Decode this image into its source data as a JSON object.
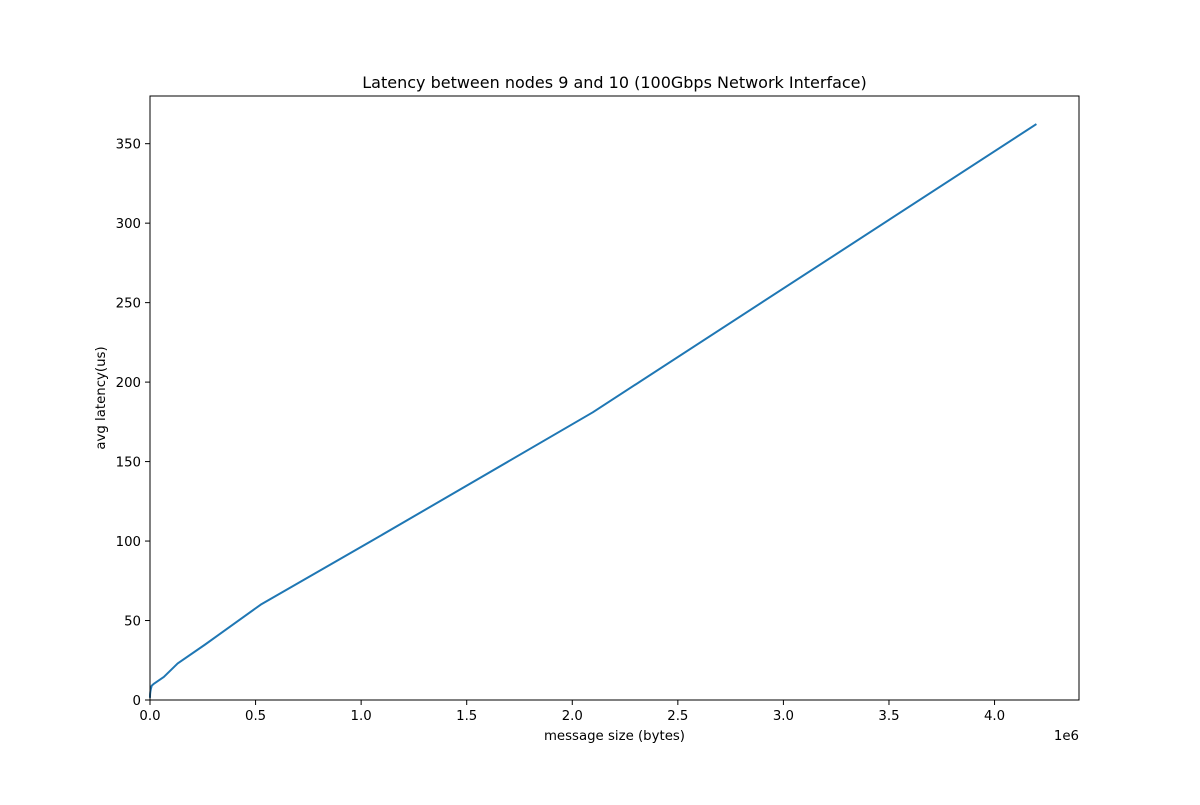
{
  "chart_data": {
    "type": "line",
    "title": "Latency between nodes 9 and 10 (100Gbps Network Interface)",
    "xlabel": "message size (bytes)",
    "ylabel": "avg latency(us)",
    "x_offset_label": "1e6",
    "xlim": [
      0,
      4400000
    ],
    "ylim": [
      0,
      380
    ],
    "xticks": [
      0,
      500000,
      1000000,
      1500000,
      2000000,
      2500000,
      3000000,
      3500000,
      4000000
    ],
    "xtick_labels": [
      "0.0",
      "0.5",
      "1.0",
      "1.5",
      "2.0",
      "2.5",
      "3.0",
      "3.5",
      "4.0"
    ],
    "yticks": [
      0,
      50,
      100,
      150,
      200,
      250,
      300,
      350
    ],
    "ytick_labels": [
      "0",
      "50",
      "100",
      "150",
      "200",
      "250",
      "300",
      "350"
    ],
    "grid": false,
    "series": [
      {
        "color": "#1f77b4",
        "x": [
          0,
          1,
          2,
          4,
          8,
          16,
          32,
          64,
          128,
          256,
          512,
          1024,
          2048,
          4096,
          8192,
          16384,
          32768,
          65536,
          131072,
          262144,
          524288,
          1048576,
          2097152,
          4194304
        ],
        "y": [
          2,
          2,
          2,
          2,
          2,
          2,
          2.2,
          2.5,
          2.8,
          3.2,
          3.8,
          4.5,
          5.5,
          7.0,
          9.0,
          10.0,
          11.5,
          14.5,
          23.0,
          35.0,
          60.0,
          100.0,
          181.0,
          362.0
        ]
      }
    ]
  }
}
